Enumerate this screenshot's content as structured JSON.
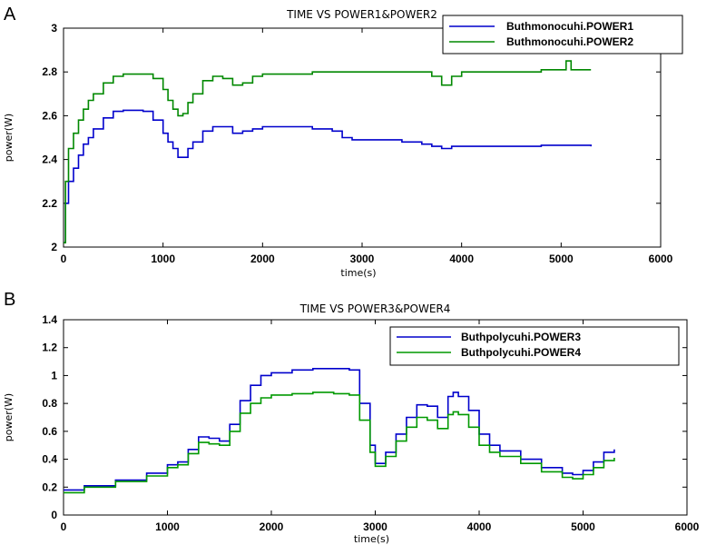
{
  "chart_data": [
    {
      "panel_label": "A",
      "type": "line",
      "title": "TIME VS POWER1&POWER2",
      "xlabel": "time(s)",
      "ylabel": "power(W)",
      "xlim": [
        0,
        6000
      ],
      "ylim": [
        2,
        3
      ],
      "xticks": [
        "0",
        "1000",
        "2000",
        "3000",
        "4000",
        "5000",
        "6000"
      ],
      "yticks": [
        "2",
        "2.2",
        "2.4",
        "2.6",
        "2.8",
        "3"
      ],
      "grid": false,
      "legend_position": "top-right",
      "series": [
        {
          "name": "Buthmonocuhi.POWER1",
          "color": "#0000cc",
          "x": [
            0,
            20,
            50,
            100,
            150,
            200,
            250,
            300,
            400,
            500,
            600,
            700,
            800,
            900,
            1000,
            1050,
            1100,
            1150,
            1200,
            1250,
            1300,
            1400,
            1500,
            1600,
            1700,
            1800,
            1900,
            2000,
            2100,
            2300,
            2500,
            2700,
            2800,
            2900,
            3000,
            3200,
            3400,
            3600,
            3700,
            3800,
            3900,
            4000,
            4200,
            4500,
            4800,
            5000,
            5300
          ],
          "y": [
            2.02,
            2.2,
            2.3,
            2.36,
            2.42,
            2.47,
            2.5,
            2.54,
            2.59,
            2.62,
            2.625,
            2.625,
            2.62,
            2.58,
            2.52,
            2.48,
            2.45,
            2.41,
            2.41,
            2.45,
            2.48,
            2.53,
            2.55,
            2.55,
            2.52,
            2.53,
            2.54,
            2.55,
            2.55,
            2.55,
            2.54,
            2.53,
            2.5,
            2.49,
            2.49,
            2.49,
            2.48,
            2.47,
            2.46,
            2.45,
            2.46,
            2.46,
            2.46,
            2.46,
            2.465,
            2.465,
            2.46
          ]
        },
        {
          "name": "Buthmonocuhi.POWER2",
          "color": "#008800",
          "x": [
            0,
            20,
            50,
            100,
            150,
            200,
            250,
            300,
            400,
            500,
            600,
            700,
            800,
            900,
            1000,
            1050,
            1100,
            1150,
            1200,
            1250,
            1300,
            1400,
            1500,
            1600,
            1700,
            1800,
            1900,
            2000,
            2200,
            2500,
            2800,
            3000,
            3200,
            3500,
            3700,
            3800,
            3900,
            4000,
            4200,
            4500,
            4800,
            5000,
            5050,
            5100,
            5300
          ],
          "y": [
            2.02,
            2.3,
            2.45,
            2.52,
            2.58,
            2.63,
            2.67,
            2.7,
            2.75,
            2.78,
            2.79,
            2.79,
            2.79,
            2.77,
            2.72,
            2.67,
            2.63,
            2.6,
            2.61,
            2.66,
            2.7,
            2.76,
            2.78,
            2.77,
            2.74,
            2.75,
            2.78,
            2.79,
            2.79,
            2.8,
            2.8,
            2.8,
            2.8,
            2.8,
            2.78,
            2.74,
            2.78,
            2.8,
            2.8,
            2.8,
            2.81,
            2.81,
            2.85,
            2.81,
            2.81
          ]
        }
      ]
    },
    {
      "panel_label": "B",
      "type": "line",
      "title": "TIME VS POWER3&POWER4",
      "xlabel": "time(s)",
      "ylabel": "power(W)",
      "xlim": [
        0,
        6000
      ],
      "ylim": [
        0,
        1.4
      ],
      "xticks": [
        "0",
        "1000",
        "2000",
        "3000",
        "4000",
        "5000",
        "6000"
      ],
      "yticks": [
        "0",
        "0.2",
        "0.4",
        "0.6",
        "0.8",
        "1",
        "1.2",
        "1.4"
      ],
      "grid": false,
      "legend_position": "top-right",
      "series": [
        {
          "name": "Buthpolycuhi.POWER3",
          "color": "#0000cc",
          "x": [
            0,
            200,
            500,
            800,
            1000,
            1100,
            1200,
            1300,
            1400,
            1500,
            1600,
            1700,
            1800,
            1900,
            2000,
            2200,
            2400,
            2600,
            2750,
            2850,
            2950,
            3000,
            3100,
            3200,
            3300,
            3400,
            3500,
            3600,
            3700,
            3750,
            3800,
            3900,
            4000,
            4100,
            4200,
            4400,
            4600,
            4800,
            4900,
            5000,
            5100,
            5200,
            5300
          ],
          "y": [
            0.18,
            0.21,
            0.25,
            0.3,
            0.36,
            0.38,
            0.47,
            0.56,
            0.55,
            0.53,
            0.65,
            0.82,
            0.93,
            1.0,
            1.02,
            1.04,
            1.05,
            1.05,
            1.04,
            0.8,
            0.5,
            0.37,
            0.45,
            0.58,
            0.7,
            0.79,
            0.78,
            0.7,
            0.85,
            0.88,
            0.85,
            0.75,
            0.58,
            0.5,
            0.46,
            0.4,
            0.34,
            0.3,
            0.29,
            0.32,
            0.38,
            0.45,
            0.47
          ]
        },
        {
          "name": "Buthpolycuhi.POWER4",
          "color": "#009900",
          "x": [
            0,
            200,
            500,
            800,
            1000,
            1100,
            1200,
            1300,
            1400,
            1500,
            1600,
            1700,
            1800,
            1900,
            2000,
            2200,
            2400,
            2600,
            2750,
            2850,
            2950,
            3000,
            3100,
            3200,
            3300,
            3400,
            3500,
            3600,
            3700,
            3750,
            3800,
            3900,
            4000,
            4100,
            4200,
            4400,
            4600,
            4800,
            4900,
            5000,
            5100,
            5200,
            5300
          ],
          "y": [
            0.16,
            0.2,
            0.24,
            0.28,
            0.34,
            0.36,
            0.44,
            0.52,
            0.51,
            0.5,
            0.6,
            0.73,
            0.8,
            0.84,
            0.86,
            0.87,
            0.88,
            0.87,
            0.86,
            0.68,
            0.45,
            0.35,
            0.42,
            0.53,
            0.63,
            0.7,
            0.68,
            0.62,
            0.72,
            0.74,
            0.72,
            0.63,
            0.5,
            0.45,
            0.42,
            0.37,
            0.31,
            0.27,
            0.26,
            0.29,
            0.34,
            0.39,
            0.41
          ]
        }
      ]
    }
  ]
}
